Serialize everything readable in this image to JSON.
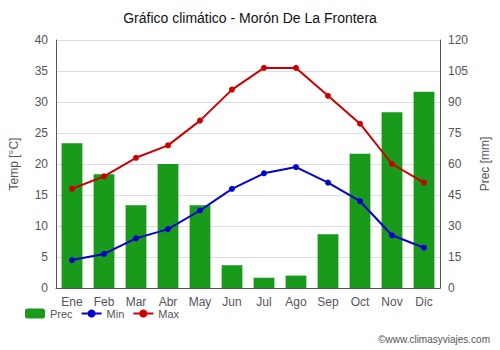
{
  "chart_data": {
    "type": "bar",
    "title": "Gráfico climático - Morón De La Frontera",
    "ylabel": "Temp [°C]",
    "y2label": "Prec [mm]",
    "annotations": [
      "©www.climasyviajes.com"
    ],
    "categories": [
      "Ene",
      "Feb",
      "Mar",
      "Abr",
      "May",
      "Jun",
      "Jul",
      "Ago",
      "Sep",
      "Oct",
      "Nov",
      "Dic"
    ],
    "series": [
      {
        "name": "Prec",
        "type": "bar",
        "axis": "y2",
        "color": "#1a9a1a",
        "values": [
          70,
          55,
          40,
          60,
          40,
          11,
          5,
          6,
          26,
          65,
          85,
          95
        ]
      },
      {
        "name": "Min",
        "type": "line",
        "color": "#0000cc",
        "marker": "circle",
        "values": [
          4.5,
          5.5,
          8.0,
          9.5,
          12.5,
          16.0,
          18.5,
          19.5,
          17.0,
          14.0,
          8.5,
          6.5
        ]
      },
      {
        "name": "Max",
        "type": "line",
        "color": "#cc0000",
        "marker": "circle",
        "values": [
          16.0,
          18.0,
          21.0,
          23.0,
          27.0,
          32.0,
          35.5,
          35.5,
          31.0,
          26.5,
          20.0,
          17.0
        ]
      }
    ],
    "ylim": [
      0,
      40
    ],
    "yticks": [
      0,
      5,
      10,
      15,
      20,
      25,
      30,
      35,
      40
    ],
    "y2lim": [
      0,
      120
    ],
    "y2ticks": [
      0,
      15,
      30,
      45,
      60,
      75,
      90,
      105,
      120
    ],
    "grid": true,
    "legend": "bottom"
  }
}
